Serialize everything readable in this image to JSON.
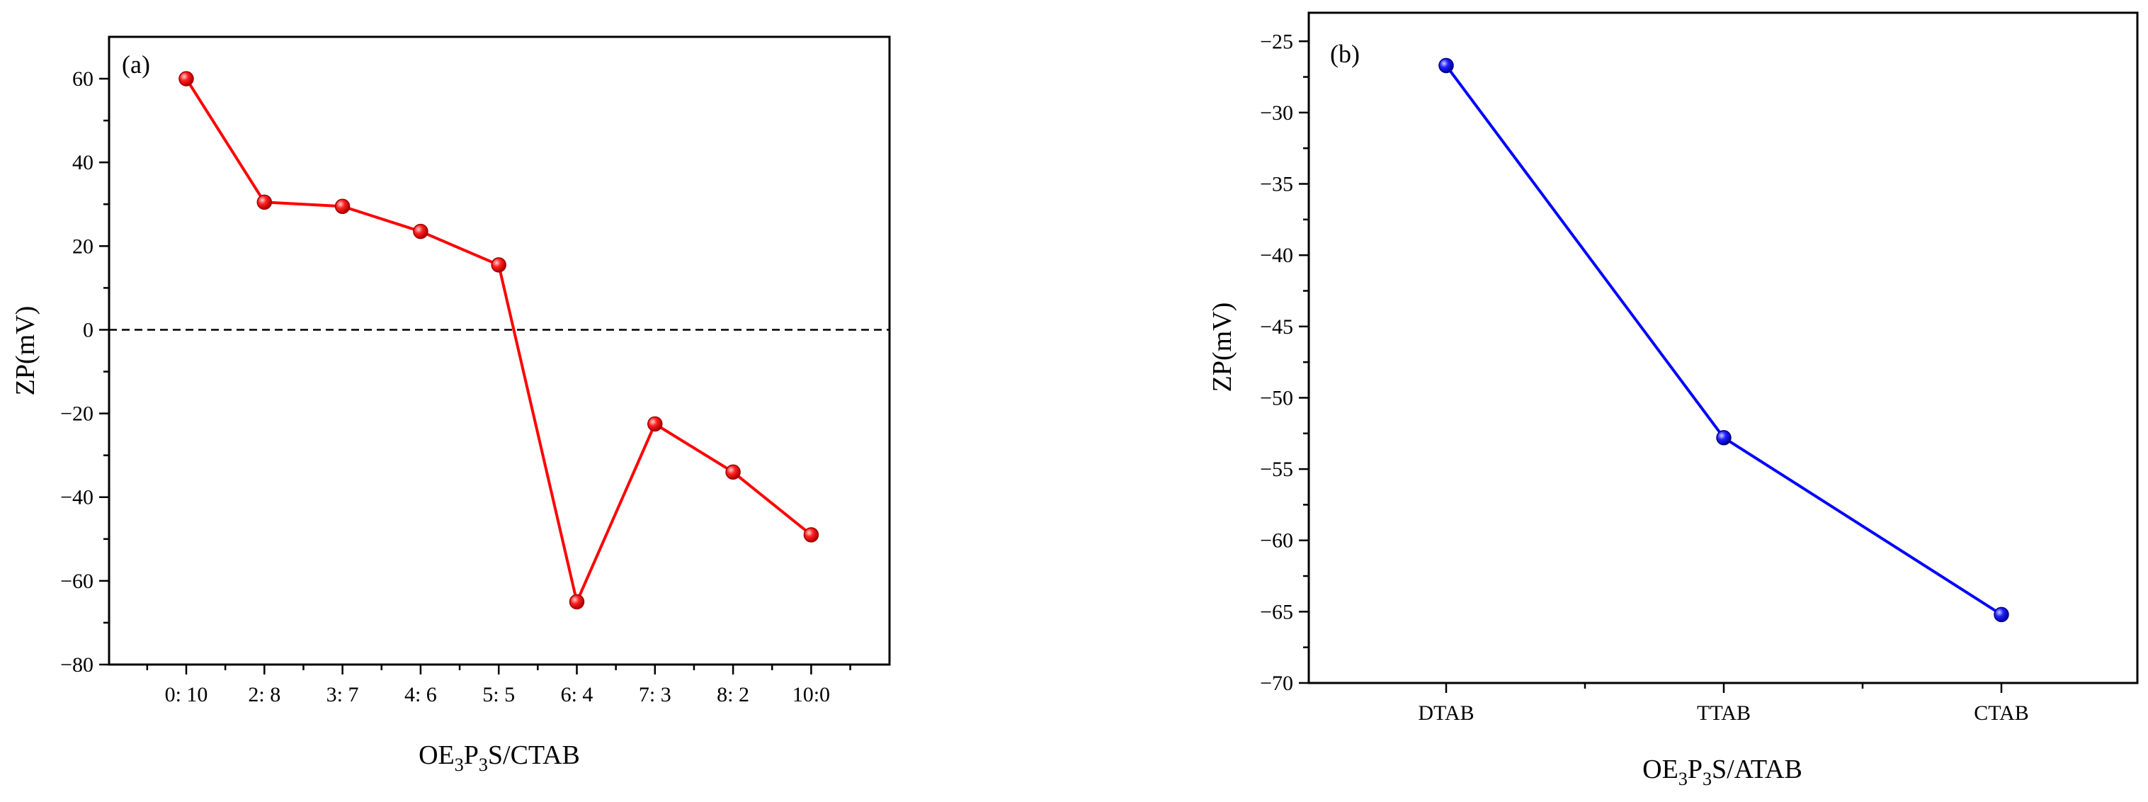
{
  "chart_data": [
    {
      "type": "line",
      "panel_label": "(a)",
      "color": "#ff0000",
      "categories": [
        "0: 10",
        "2: 8",
        "3: 7",
        "4: 6",
        "5: 5",
        "6: 4",
        "7: 3",
        "8: 2",
        "10:0"
      ],
      "values": [
        60,
        30.5,
        29.5,
        23.5,
        15.5,
        -65,
        -22.5,
        -34,
        -49
      ],
      "xlabel": {
        "main": "OE",
        "sub1": "3",
        "mid": "P",
        "sub2": "3",
        "tail": "S/CTAB"
      },
      "ylabel": "ZP(mV)",
      "ylim": [
        -80,
        70
      ],
      "yticks": [
        -80,
        -60,
        -40,
        -20,
        0,
        20,
        40,
        60
      ],
      "ytick_labels": [
        "−80",
        "−60",
        "−40",
        "−20",
        "0",
        "20",
        "40",
        "60"
      ],
      "reference_line": {
        "y": 0,
        "style": "dashed"
      }
    },
    {
      "type": "line",
      "panel_label": "(b)",
      "color": "#0000ff",
      "categories": [
        "DTAB",
        "TTAB",
        "CTAB"
      ],
      "values": [
        -26.7,
        -52.8,
        -65.2
      ],
      "xlabel": {
        "main": "OE",
        "sub1": "3",
        "mid": "P",
        "sub2": "3",
        "tail": "S/ATAB"
      },
      "ylabel": "ZP(mV)",
      "ylim": [
        -70,
        -23
      ],
      "yticks": [
        -70,
        -65,
        -60,
        -55,
        -50,
        -45,
        -40,
        -35,
        -30,
        -25
      ],
      "ytick_labels": [
        "−70",
        "−65",
        "−60",
        "−55",
        "−50",
        "−45",
        "−40",
        "−35",
        "−30",
        "−25"
      ]
    }
  ]
}
